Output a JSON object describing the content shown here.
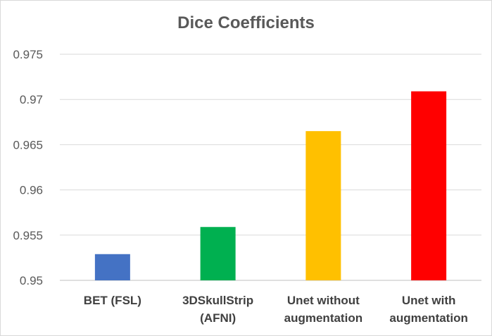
{
  "chart_data": {
    "type": "bar",
    "title": "Dice Coefficients",
    "categories": [
      [
        "BET (FSL)"
      ],
      [
        "3DSkullStrip",
        "(AFNI)"
      ],
      [
        "Unet without",
        "augmentation"
      ],
      [
        "Unet with",
        "augmentation"
      ]
    ],
    "values": [
      0.9529,
      0.9559,
      0.9665,
      0.9709
    ],
    "bar_colors": [
      "#4472c4",
      "#00b050",
      "#ffc000",
      "#ff0000"
    ],
    "ylim": [
      0.95,
      0.975
    ],
    "yticks": [
      0.95,
      0.955,
      0.96,
      0.965,
      0.97,
      0.975
    ],
    "ytick_labels": [
      "0.95",
      "0.955",
      "0.96",
      "0.965",
      "0.97",
      "0.975"
    ],
    "grid": true,
    "xlabel": "",
    "ylabel": ""
  }
}
